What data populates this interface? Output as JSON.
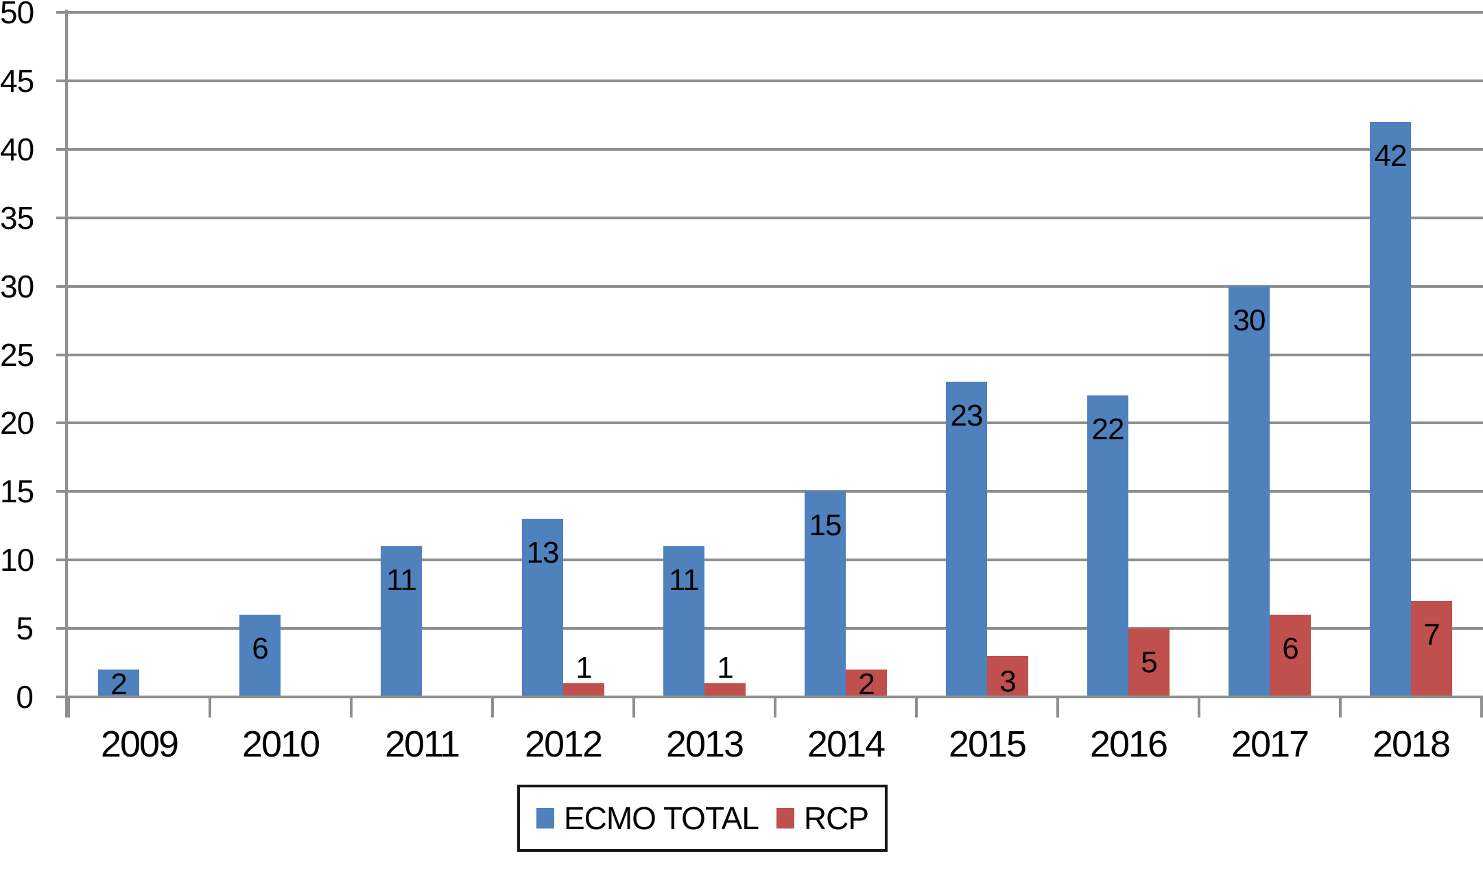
{
  "chart_data": {
    "type": "bar",
    "title": "",
    "xlabel": "",
    "ylabel": "",
    "categories": [
      "2009",
      "2010",
      "2011",
      "2012",
      "2013",
      "2014",
      "2015",
      "2016",
      "2017",
      "2018"
    ],
    "series": [
      {
        "name": "ECMO TOTAL",
        "color": "#4F81BD",
        "values": [
          2,
          6,
          11,
          13,
          11,
          15,
          23,
          22,
          30,
          42
        ]
      },
      {
        "name": "RCP",
        "color": "#C0504D",
        "values": [
          null,
          null,
          null,
          1,
          1,
          2,
          3,
          5,
          6,
          7
        ]
      }
    ],
    "ylim": [
      0,
      50
    ],
    "ytick_step": 5,
    "yticks": [
      "0",
      "5",
      "10",
      "15",
      "20",
      "25",
      "30",
      "35",
      "40",
      "45",
      "50"
    ],
    "grid": "horizontal",
    "gridline_color": "#8f8f8f",
    "axis_color": "#8f8f8f",
    "label_color": "#000000",
    "background_color": "#ffffff",
    "legend_position": "bottom",
    "legend_border_color": "#161616",
    "data_labels": true
  }
}
